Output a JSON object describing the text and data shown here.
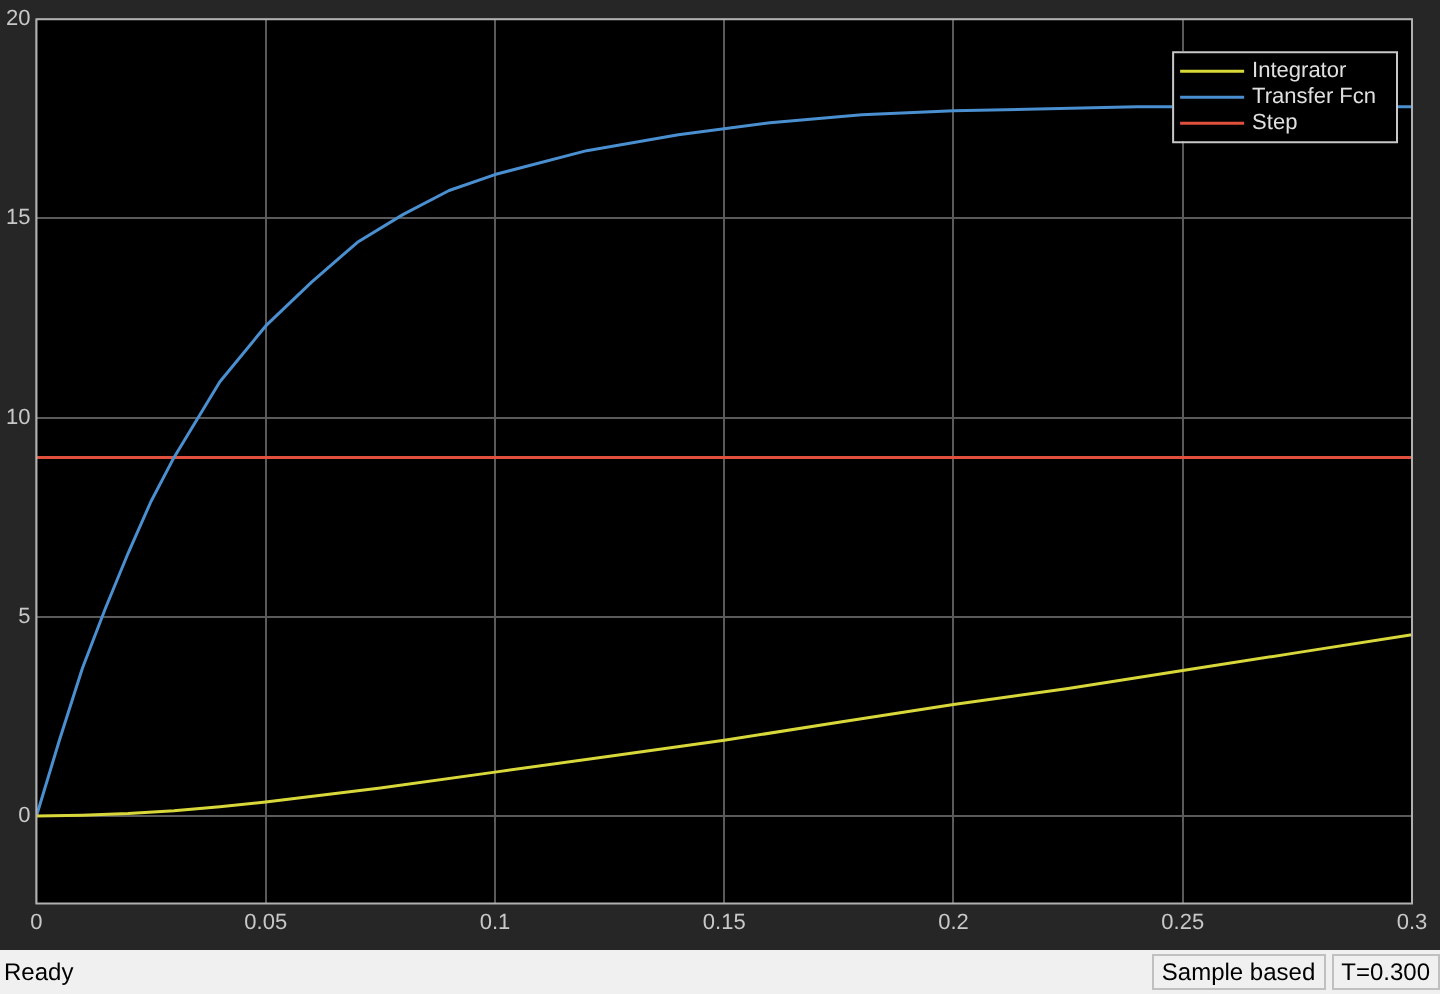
{
  "chart_data": {
    "type": "line",
    "xlim": [
      0,
      0.3
    ],
    "xticks": [
      0,
      0.05,
      0.1,
      0.15,
      0.2,
      0.25,
      0.3
    ],
    "ylim": [
      -2.2,
      20
    ],
    "yticks": [
      0,
      5,
      10,
      15,
      20
    ],
    "grid": true,
    "legend": "top right",
    "marker": "none",
    "line_style": "solid",
    "annotations": [
      "Ready",
      "Sample based",
      "T=0.300"
    ],
    "series": [
      {
        "name": "Integrator",
        "color": "#d8d83a",
        "x": [
          0,
          0.01,
          0.02,
          0.03,
          0.04,
          0.05,
          0.075,
          0.1,
          0.125,
          0.15,
          0.175,
          0.2,
          0.225,
          0.25,
          0.275,
          0.3
        ],
        "values": [
          0,
          0.02,
          0.06,
          0.13,
          0.23,
          0.35,
          0.7,
          1.1,
          1.5,
          1.9,
          2.35,
          2.8,
          3.2,
          3.65,
          4.1,
          4.55
        ]
      },
      {
        "name": "Transfer Fcn",
        "color": "#4a8fd0",
        "x": [
          0,
          0.005,
          0.01,
          0.015,
          0.02,
          0.025,
          0.03,
          0.04,
          0.05,
          0.06,
          0.07,
          0.08,
          0.09,
          0.1,
          0.12,
          0.14,
          0.16,
          0.18,
          0.2,
          0.24,
          0.3
        ],
        "values": [
          0,
          1.9,
          3.7,
          5.2,
          6.6,
          7.9,
          9.0,
          10.9,
          12.3,
          13.4,
          14.4,
          15.1,
          15.7,
          16.1,
          16.7,
          17.1,
          17.4,
          17.6,
          17.7,
          17.8,
          17.8
        ]
      },
      {
        "name": "Step",
        "color": "#e0503c",
        "x": [
          0,
          0.3
        ],
        "values": [
          9,
          9
        ]
      }
    ]
  }
}
